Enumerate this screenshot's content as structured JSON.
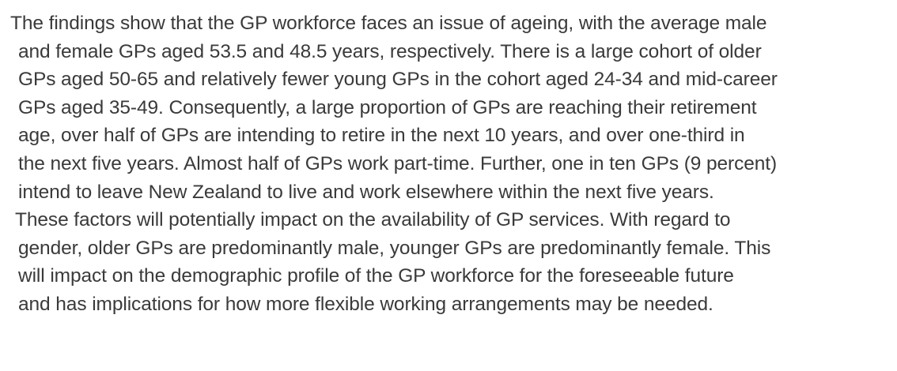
{
  "paragraph": {
    "lines": [
      "The findings show that the GP workforce faces an issue of ageing, with the average male",
      "and female GPs aged 53.5 and 48.5 years, respectively. There is a large cohort of older",
      "GPs aged 50-65 and relatively fewer young GPs in the cohort aged 24-34 and mid-career",
      "GPs aged 35-49. Consequently, a large proportion of GPs are reaching their retirement",
      "age, over half of GPs are intending to retire in the next 10 years, and over one-third in",
      "the next five years. Almost half of GPs work part-time. Further, one in ten GPs (9 percent)",
      "intend to leave New Zealand to live and work elsewhere within the next five years.",
      "These factors will potentially impact on the availability of GP services. With regard to",
      "gender, older GPs are predominantly male, younger GPs are predominantly female. This",
      "will impact on the demographic profile of the GP workforce for the foreseeable future",
      "and has implications for how more flexible working arrangements may be needed."
    ]
  }
}
